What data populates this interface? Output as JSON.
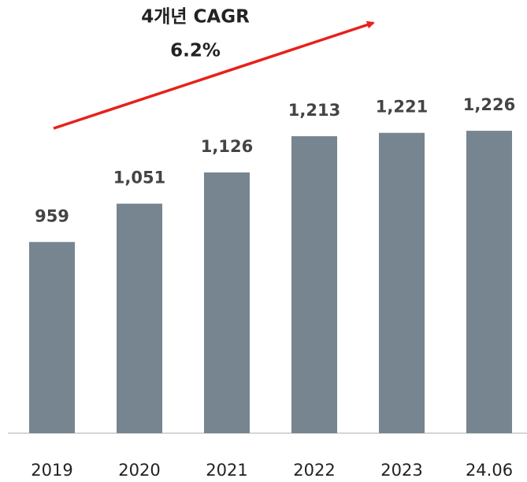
{
  "chart_data": {
    "type": "bar",
    "annotation": [
      "4개년 CAGR",
      "6.2%"
    ],
    "categories": [
      "2019",
      "2020",
      "2021",
      "2022",
      "2023",
      "24.06"
    ],
    "values": [
      959,
      1051,
      1126,
      1213,
      1221,
      1226
    ],
    "value_labels": [
      "959",
      "1,051",
      "1,126",
      "1,213",
      "1,221",
      "1,226"
    ],
    "color": "#76858f",
    "ylim": [
      500,
      1540
    ]
  }
}
